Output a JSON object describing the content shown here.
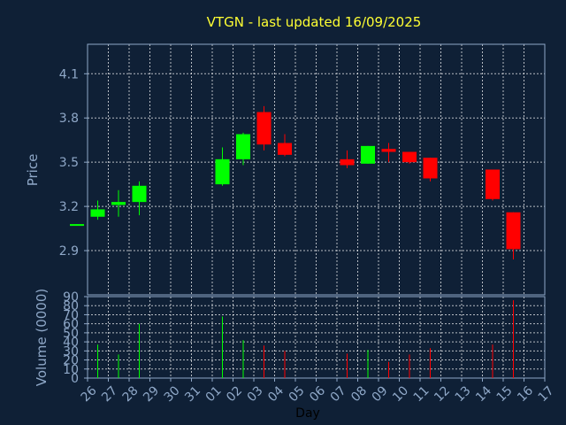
{
  "chart_data": {
    "type": "candlestick",
    "title": "VTGN - last updated 16/09/2025",
    "ylabel": "Price",
    "volume_label": "Volume (0000)",
    "xlabel": "Day",
    "price_ylim": [
      2.6,
      4.3
    ],
    "price_ticks": [
      "4.1",
      "3.8",
      "3.5",
      "3.2",
      "2.9"
    ],
    "volume_ylim": [
      0,
      90
    ],
    "volume_ticks": [
      "90",
      "80",
      "70",
      "60",
      "50",
      "40",
      "30",
      "20",
      "10",
      "0"
    ],
    "x_tick_labels": [
      "26",
      "27",
      "28",
      "29",
      "30",
      "31",
      "01",
      "02",
      "03",
      "04",
      "05",
      "06",
      "07",
      "08",
      "09",
      "10",
      "11",
      "12",
      "13",
      "14",
      "15",
      "16",
      "17"
    ],
    "grid": true,
    "colors": {
      "up": "#00ff00",
      "down": "#ff0000",
      "title": "#ffff33",
      "text": "#8fa8c8",
      "axis": "#8fa8c8",
      "grid": "#ffffff",
      "background": "#0f2036"
    },
    "candles": [
      {
        "day": "26",
        "open": 3.07,
        "high": 3.08,
        "low": 3.07,
        "close": 3.08,
        "volume": 0
      },
      {
        "day": "27",
        "open": 3.13,
        "high": 3.24,
        "low": 3.11,
        "close": 3.18,
        "volume": 37
      },
      {
        "day": "28",
        "open": 3.21,
        "high": 3.31,
        "low": 3.13,
        "close": 3.23,
        "volume": 26
      },
      {
        "day": "29",
        "open": 3.23,
        "high": 3.37,
        "low": 3.14,
        "close": 3.34,
        "volume": 60
      },
      {
        "day": "02",
        "open": 3.35,
        "high": 3.6,
        "low": 3.34,
        "close": 3.52,
        "volume": 68
      },
      {
        "day": "03",
        "open": 3.52,
        "high": 3.7,
        "low": 3.48,
        "close": 3.69,
        "volume": 42
      },
      {
        "day": "04",
        "open": 3.84,
        "high": 3.88,
        "low": 3.58,
        "close": 3.62,
        "volume": 36
      },
      {
        "day": "05",
        "open": 3.63,
        "high": 3.69,
        "low": 3.54,
        "close": 3.55,
        "volume": 30
      },
      {
        "day": "08",
        "open": 3.52,
        "high": 3.58,
        "low": 3.46,
        "close": 3.48,
        "volume": 27
      },
      {
        "day": "09",
        "open": 3.49,
        "high": 3.61,
        "low": 3.49,
        "close": 3.61,
        "volume": 31
      },
      {
        "day": "10",
        "open": 3.59,
        "high": 3.63,
        "low": 3.5,
        "close": 3.57,
        "volume": 18
      },
      {
        "day": "11",
        "open": 3.57,
        "high": 3.57,
        "low": 3.49,
        "close": 3.5,
        "volume": 26
      },
      {
        "day": "12",
        "open": 3.53,
        "high": 3.53,
        "low": 3.37,
        "close": 3.39,
        "volume": 33
      },
      {
        "day": "15",
        "open": 3.45,
        "high": 3.45,
        "low": 3.24,
        "close": 3.25,
        "volume": 37
      },
      {
        "day": "16",
        "open": 3.16,
        "high": 3.16,
        "low": 2.84,
        "close": 2.91,
        "volume": 86
      }
    ]
  }
}
